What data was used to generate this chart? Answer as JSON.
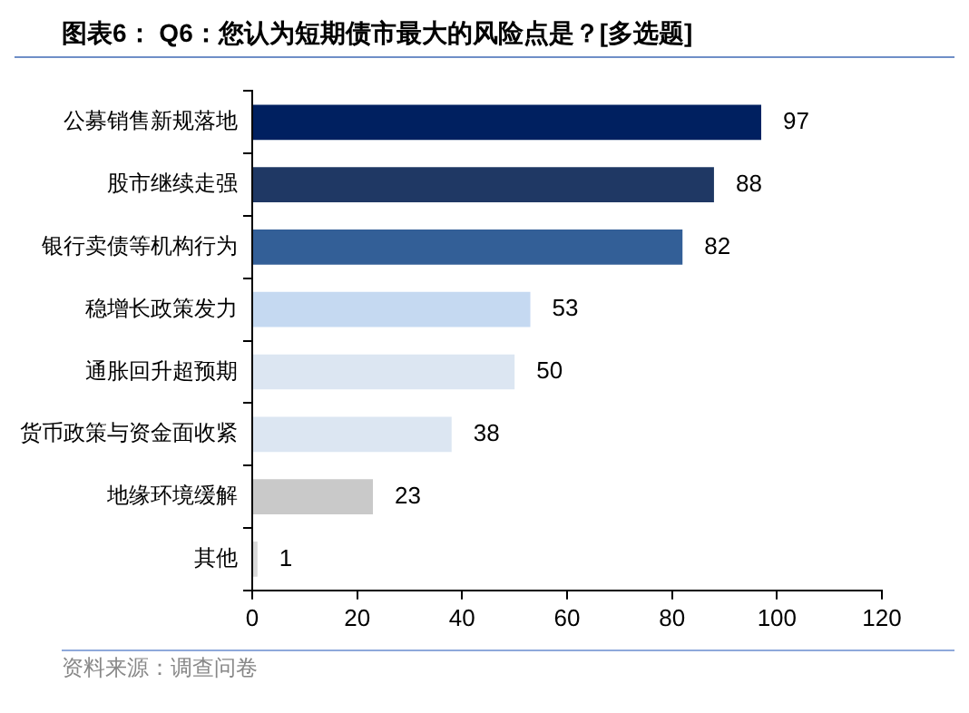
{
  "chart_data": {
    "type": "bar",
    "orientation": "horizontal",
    "title": "图表6： Q6：您认为短期债市最大的风险点是？[多选题]",
    "annotations": [
      "资料来源：调查问卷"
    ],
    "categories": [
      "公募销售新规落地",
      "股市继续走强",
      "银行卖债等机构行为",
      "稳增长政策发力",
      "通胀回升超预期",
      "货币政策与资金面收紧",
      "地缘环境缓解",
      "其他"
    ],
    "values": [
      97,
      88,
      82,
      53,
      50,
      38,
      23,
      1
    ],
    "colors": [
      "#002060",
      "#1f3864",
      "#335f97",
      "#c5d9f1",
      "#dce6f2",
      "#dce6f2",
      "#c9c9c9",
      "#d9d9d9"
    ],
    "xlim": [
      0,
      120
    ],
    "xticks": [
      0,
      20,
      40,
      60,
      80,
      100,
      120
    ],
    "grid": false,
    "legend": false,
    "data_labels": true
  }
}
